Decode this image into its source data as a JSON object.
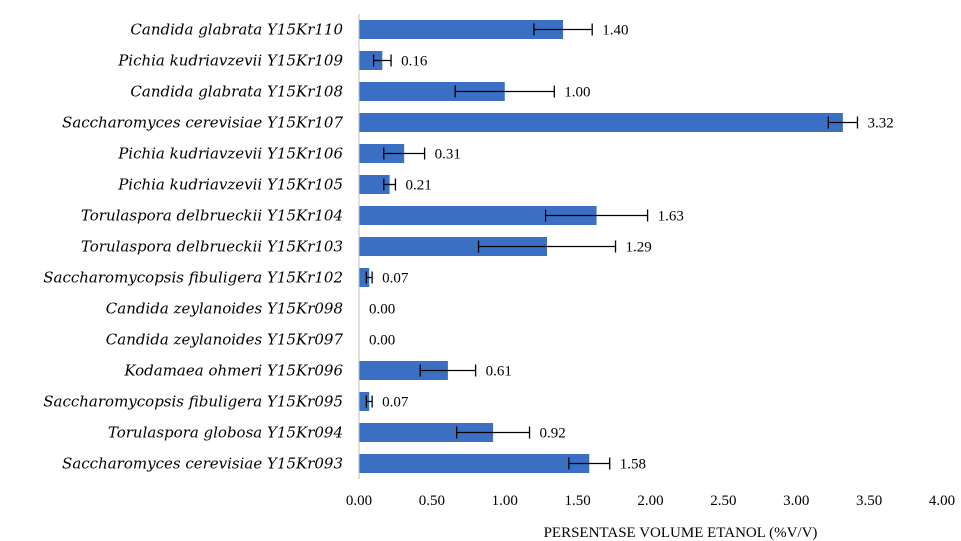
{
  "chart_data": {
    "type": "bar",
    "orientation": "horizontal",
    "categories": [
      "Candida glabrata Y15Kr110",
      "Pichia kudriavzevii Y15Kr109",
      "Candida glabrata Y15Kr108",
      "Saccharomyces cerevisiae Y15Kr107",
      "Pichia kudriavzevii Y15Kr106",
      "Pichia kudriavzevii Y15Kr105",
      "Torulaspora delbrueckii Y15Kr104",
      "Torulaspora delbrueckii Y15Kr103",
      "Saccharomycopsis fibuligera Y15Kr102",
      "Candida zeylanoides Y15Kr098",
      "Candida zeylanoides Y15Kr097",
      "Kodamaea ohmeri Y15Kr096",
      "Saccharomycopsis fibuligera Y15Kr095",
      "Torulaspora globosa Y15Kr094",
      "Saccharomyces cerevisiae Y15Kr093"
    ],
    "values": [
      1.4,
      0.16,
      1.0,
      3.32,
      0.31,
      0.21,
      1.63,
      1.29,
      0.07,
      0.0,
      0.0,
      0.61,
      0.07,
      0.92,
      1.58
    ],
    "data_labels": [
      "1.40",
      "0.16",
      "1.00",
      "3.32",
      "0.31",
      "0.21",
      "1.63",
      "1.29",
      "0.07",
      "0.00",
      "0.00",
      "0.61",
      "0.07",
      "0.92",
      "1.58"
    ],
    "error": [
      0.2,
      0.06,
      0.34,
      0.1,
      0.14,
      0.04,
      0.35,
      0.47,
      0.02,
      0.0,
      0.0,
      0.19,
      0.02,
      0.25,
      0.14
    ],
    "xlabel": "PERSENTASE VOLUME ETANOL (%V/V)",
    "xlim": [
      0,
      4
    ],
    "xticks": [
      "0.00",
      "0.50",
      "1.00",
      "1.50",
      "2.00",
      "2.50",
      "3.00",
      "3.50",
      "4.00"
    ],
    "grid": false,
    "legend": "none",
    "bar_color": "#3A6FC4"
  }
}
